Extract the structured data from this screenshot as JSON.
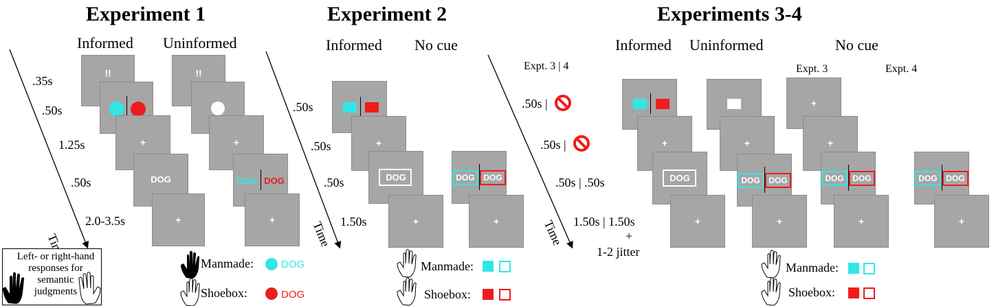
{
  "titles": {
    "exp1": "Experiment 1",
    "exp2": "Experiment 2",
    "exp34": "Experiments 3-4"
  },
  "columns": {
    "exp1_informed": "Informed",
    "exp1_uninformed": "Uninformed",
    "exp2_informed": "Informed",
    "exp2_nocue": "No cue",
    "exp34_informed": "Informed",
    "exp34_uninformed": "Uninformed",
    "exp34_nocue": "No cue",
    "exp34_expt3": "Expt. 3",
    "exp34_expt4": "Expt. 4"
  },
  "timing": {
    "exp1": [
      ".35s",
      ".50s",
      "1.25s",
      ".50s",
      "2.0-3.5s"
    ],
    "exp2": [
      ".50s",
      ".50s",
      ".50s",
      "1.50s"
    ],
    "exp34_header": "Expt. 3 | 4",
    "exp34": [
      ".50s |",
      ".50s |",
      ".50s | .50s",
      "1.50s  |  1.50s",
      "+",
      "1-2 jitter"
    ]
  },
  "time_label": "Time",
  "screen_text": {
    "cue": "!!",
    "fixation": "+",
    "word": "DOG"
  },
  "response_box": {
    "text": "Left- or right-hand responses for semantic judgments"
  },
  "legend": {
    "manmade": "Manmade:",
    "shoebox": "Shoebox:",
    "word": "DOG"
  },
  "colors": {
    "cyan": "#33e6e6",
    "red": "#ee1c1c",
    "screen": "#a6a6a6"
  }
}
